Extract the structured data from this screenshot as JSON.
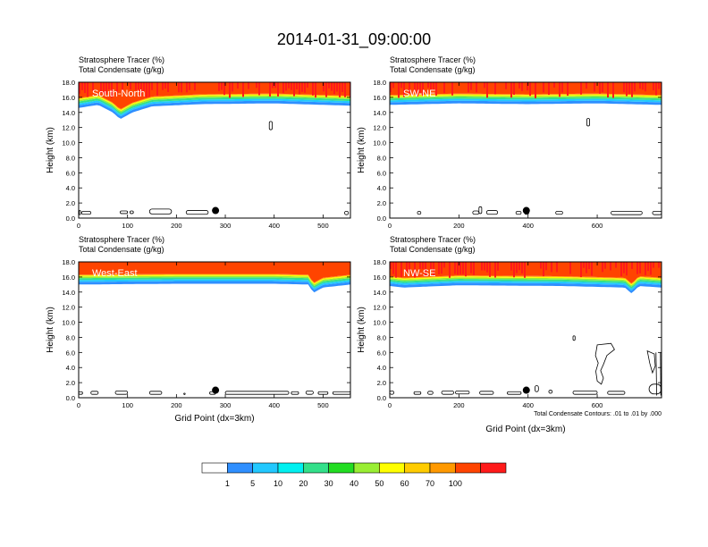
{
  "title": "2014-01-31_09:00:00",
  "colors": {
    "palette": [
      "#ffffff",
      "#2f8fff",
      "#22c8ff",
      "#00f0f0",
      "#33e08a",
      "#22dd22",
      "#99ee33",
      "#ffff00",
      "#ffcc00",
      "#ff9900",
      "#ff4400",
      "#ff1a1a"
    ],
    "contour": "#000000",
    "marker": "#000000"
  },
  "colorbar": {
    "levels": [
      "1",
      "5",
      "10",
      "20",
      "30",
      "40",
      "50",
      "60",
      "70",
      "100"
    ]
  },
  "footnote": "Total Condensate Contours: .01 to .01 by .000",
  "chart_data": [
    {
      "type": "heatmap",
      "label": "South-North",
      "subtitle_line1": "Stratosphere Tracer   (%)",
      "subtitle_line2": "Total Condensate   (g/kg)",
      "ylabel": "Height (km)",
      "xlabel": "",
      "xlim": [
        0,
        556
      ],
      "ylim": [
        0,
        18
      ],
      "xticks": [
        "0",
        "100",
        "200",
        "300",
        "400",
        "500"
      ],
      "xtick_values": [
        0,
        100,
        200,
        300,
        400,
        500
      ],
      "yticks": [
        "0.0",
        "2.0",
        "4.0",
        "6.0",
        "8.0",
        "10.0",
        "12.0",
        "14.0",
        "16.0",
        "18.0"
      ],
      "tracer_base_km": [
        [
          0,
          14.6
        ],
        [
          40,
          15.0
        ],
        [
          70,
          14.0
        ],
        [
          85,
          13.1
        ],
        [
          110,
          14.0
        ],
        [
          150,
          14.8
        ],
        [
          250,
          15.1
        ],
        [
          400,
          15.2
        ],
        [
          556,
          14.9
        ]
      ],
      "marker_point": [
        280,
        1.0
      ]
    },
    {
      "type": "heatmap",
      "label": "SW-NE",
      "subtitle_line1": "Stratosphere Tracer   (%)",
      "subtitle_line2": "Total Condensate   (g/kg)",
      "ylabel": "Height (km)",
      "xlabel": "",
      "xlim": [
        0,
        786
      ],
      "ylim": [
        0,
        18
      ],
      "xticks": [
        "0",
        "200",
        "400",
        "600"
      ],
      "xtick_values": [
        0,
        200,
        400,
        600
      ],
      "yticks": [
        "0.0",
        "2.0",
        "4.0",
        "6.0",
        "8.0",
        "10.0",
        "12.0",
        "14.0",
        "16.0",
        "18.0"
      ],
      "tracer_base_km": [
        [
          0,
          15.0
        ],
        [
          200,
          15.2
        ],
        [
          400,
          15.1
        ],
        [
          600,
          15.2
        ],
        [
          786,
          15.0
        ]
      ],
      "marker_point": [
        395,
        1.0
      ]
    },
    {
      "type": "heatmap",
      "label": "West-East",
      "subtitle_line1": "Stratosphere Tracer   (%)",
      "subtitle_line2": "Total Condensate   (g/kg)",
      "ylabel": "Height (km)",
      "xlabel": "Grid Point (dx=3km)",
      "xlim": [
        0,
        556
      ],
      "ylim": [
        0,
        18
      ],
      "xticks": [
        "0",
        "100",
        "200",
        "300",
        "400",
        "500"
      ],
      "xtick_values": [
        0,
        100,
        200,
        300,
        400,
        500
      ],
      "yticks": [
        "0.0",
        "2.0",
        "4.0",
        "6.0",
        "8.0",
        "10.0",
        "12.0",
        "14.0",
        "16.0",
        "18.0"
      ],
      "tracer_base_km": [
        [
          0,
          15.0
        ],
        [
          200,
          15.1
        ],
        [
          400,
          15.1
        ],
        [
          470,
          15.0
        ],
        [
          480,
          13.9
        ],
        [
          500,
          14.6
        ],
        [
          556,
          15.0
        ]
      ],
      "marker_point": [
        280,
        1.0
      ]
    },
    {
      "type": "heatmap",
      "label": "NW-SE",
      "subtitle_line1": "Stratosphere Tracer   (%)",
      "subtitle_line2": "Total Condensate   (g/kg)",
      "ylabel": "Height (km)",
      "xlabel": "Grid Point (dx=3km)",
      "xlim": [
        0,
        786
      ],
      "ylim": [
        0,
        18
      ],
      "xticks": [
        "0",
        "200",
        "400",
        "600"
      ],
      "xtick_values": [
        0,
        200,
        400,
        600
      ],
      "yticks": [
        "0.0",
        "2.0",
        "4.0",
        "6.0",
        "8.0",
        "10.0",
        "12.0",
        "14.0",
        "16.0",
        "18.0"
      ],
      "tracer_base_km": [
        [
          0,
          14.8
        ],
        [
          40,
          14.6
        ],
        [
          200,
          14.9
        ],
        [
          500,
          14.8
        ],
        [
          680,
          14.6
        ],
        [
          700,
          13.8
        ],
        [
          720,
          14.8
        ],
        [
          786,
          14.6
        ]
      ],
      "marker_point": [
        395,
        1.0
      ]
    }
  ]
}
